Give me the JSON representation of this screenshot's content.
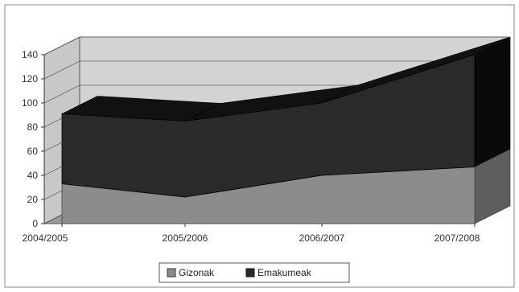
{
  "chart_data": {
    "type": "area",
    "stacked": true,
    "three_d": true,
    "categories": [
      "2004/2005",
      "2005/2006",
      "2006/2007",
      "2007/2008"
    ],
    "series": [
      {
        "name": "Gizonak",
        "values": [
          33,
          22,
          40,
          47
        ]
      },
      {
        "name": "Emakumeak",
        "values": [
          58,
          63,
          60,
          93
        ]
      }
    ],
    "ylim": [
      0,
      140
    ],
    "yticks": [
      0,
      20,
      40,
      60,
      80,
      100,
      120,
      140
    ],
    "grid": true,
    "legend_position": "bottom",
    "colors": {
      "series": [
        "#8c8c8c",
        "#2a2a2a"
      ],
      "series_shade": [
        "#5e5e5e",
        "#111111"
      ],
      "back_wall": "#d3d3d3",
      "side_wall": "#c8c8c8",
      "floor": "#9a9a9a",
      "frame": "#555555"
    }
  }
}
